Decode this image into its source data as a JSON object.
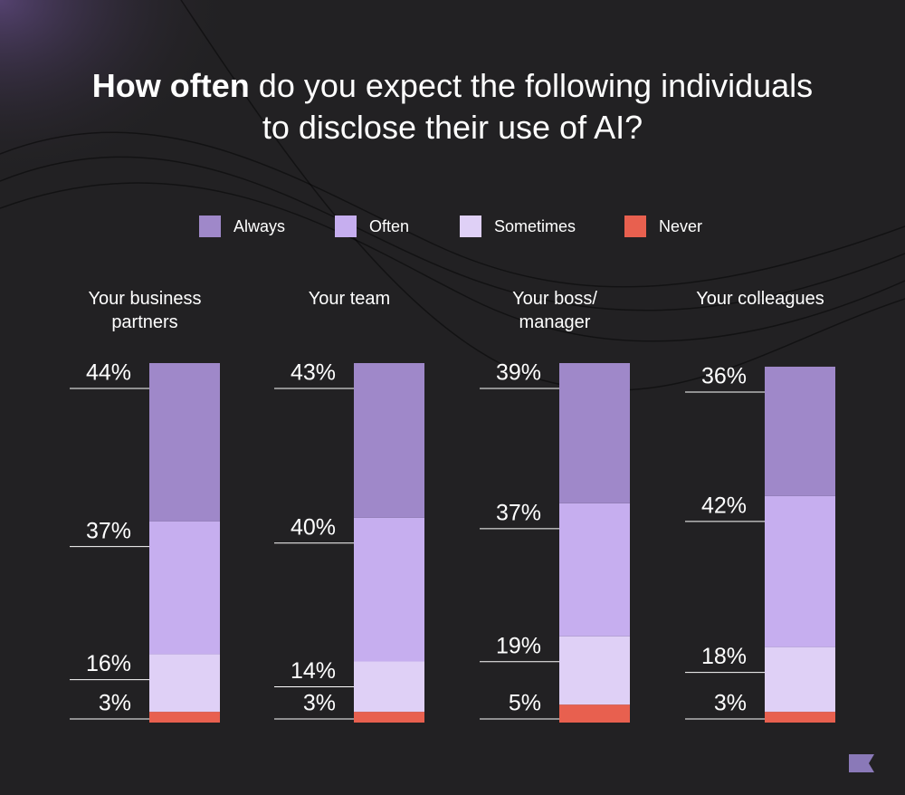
{
  "title": {
    "bold": "How often",
    "rest": "do you expect the following individuals to disclose their use of AI?"
  },
  "chart_data": {
    "type": "stacked_bar",
    "categories": [
      "Your business partners",
      "Your team",
      "Your boss/ manager",
      "Your colleagues"
    ],
    "ylim": [
      0,
      100
    ],
    "series": [
      {
        "name": "Always",
        "color": "#9f88c9",
        "values": [
          44,
          43,
          39,
          36
        ],
        "value_labels": [
          "44%",
          "43%",
          "39%",
          "36%"
        ]
      },
      {
        "name": "Often",
        "color": "#c6aeef",
        "values": [
          37,
          40,
          37,
          42
        ],
        "value_labels": [
          "37%",
          "40%",
          "37%",
          "42%"
        ]
      },
      {
        "name": "Sometimes",
        "color": "#dfd0f6",
        "values": [
          16,
          14,
          19,
          18
        ],
        "value_labels": [
          "16%",
          "14%",
          "19%",
          "18%"
        ]
      },
      {
        "name": "Never",
        "color": "#e8604f",
        "values": [
          3,
          3,
          5,
          3
        ],
        "value_labels": [
          "3%",
          "3%",
          "5%",
          "3%"
        ]
      }
    ]
  }
}
